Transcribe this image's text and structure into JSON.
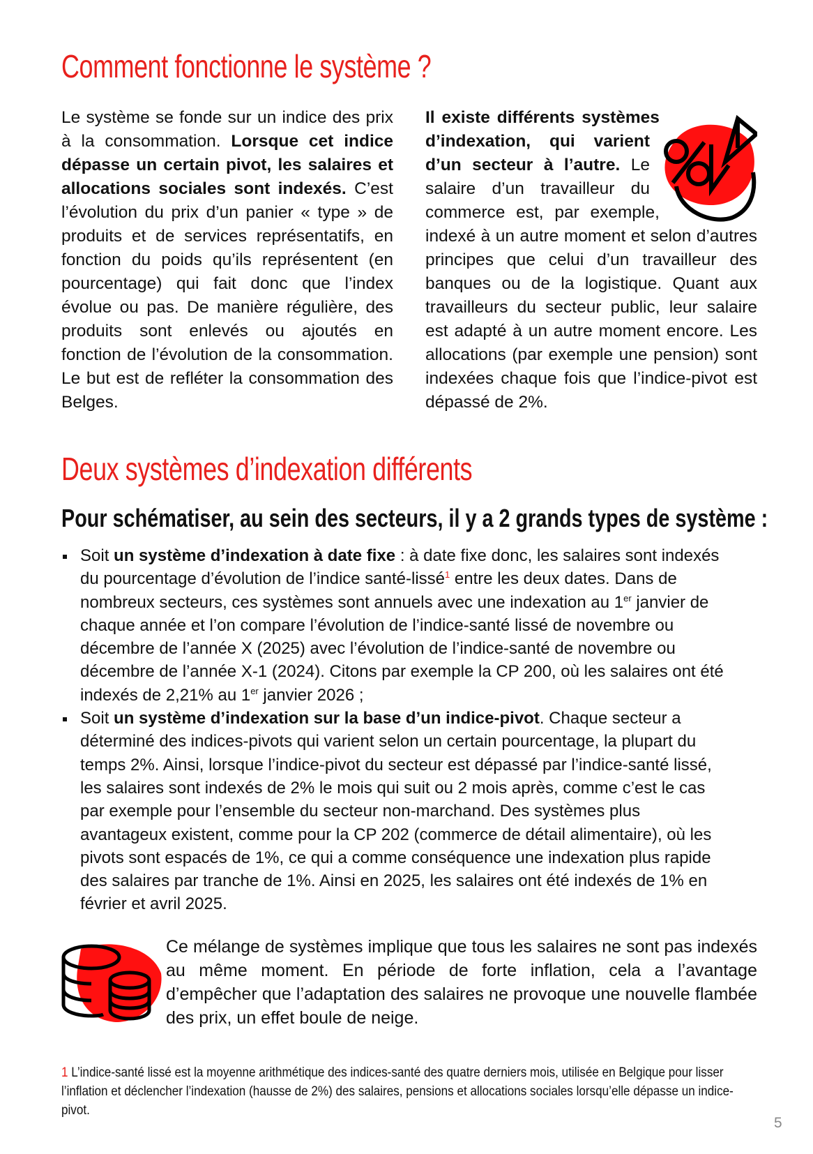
{
  "section1": {
    "title": "Comment fonctionne le système ?",
    "left": {
      "t1": "Le système se fonde sur un indice des prix à la consommation. ",
      "b1": "Lorsque cet indice dépasse un certain pivot, les salaires et allocations sociales sont indexés.",
      "t2": " C’est l’évolution du prix d’un panier « type » de produits et de services représentatifs, en fonction du poids qu’ils représentent (en pourcentage) qui fait donc que l’index évolue ou pas. De manière régulière, des produits sont enlevés ou ajoutés en fonction de l’évolution de la consommation. Le but est de refléter la consommation des Belges."
    },
    "right": {
      "b1": "Il existe différents systèmes d’indexation, qui varient d’un secteur à l’autre.",
      "t1": " Le salaire d’un travailleur du commerce est, par exemple, indexé à un autre moment et selon d’autres principes que celui d’un travailleur des banques ou de la logistique. Quant aux travailleurs du secteur public, leur salaire est adapté à un autre moment encore. Les allocations (par exemple une pension) sont indexées chaque fois que l’indice-pivot est dépassé de 2%."
    }
  },
  "section2": {
    "title": "Deux systèmes d’indexation différents",
    "subtitle": "Pour schématiser, au sein des secteurs, il y a 2 grands types de système :",
    "bullet1": {
      "t1": "Soit ",
      "b1": "un système d’indexation à date fixe",
      "t2": " : à date fixe donc, les salaires sont indexés du pourcentage d’évolution de l’indice santé-lissé",
      "fn": "1",
      "t3": " entre les deux dates. Dans de nombreux secteurs, ces systèmes sont annuels avec une indexation au 1",
      "sup1": "er",
      "t4": " janvier de chaque année et l’on compare l’évolution de l’indice-santé lissé de novembre ou décembre de l’année X (2025) avec l’évolution de l’indice-santé de novembre ou décembre de l’année X-1 (2024). Citons par exemple la CP 200, où les salaires ont été indexés de 2,21% au 1",
      "sup2": "er",
      "t5": " janvier 2026 ;"
    },
    "bullet2": {
      "t1": "Soit ",
      "b1": "un système d’indexation sur la base d’un indice-pivot",
      "t2": ". Chaque secteur a déterminé des indices-pivots qui varient selon un certain pourcentage, la plupart du temps 2%. Ainsi, lorsque l’indice-pivot du secteur est dépassé par l’indice-santé lissé, les salaires sont indexés de 2% le mois qui suit ou 2 mois après, comme c’est le cas par exemple pour  l’ensemble du secteur non-marchand. Des systèmes plus avantageux existent, comme pour la CP 202 (commerce de détail alimentaire), où les pivots sont espacés de 1%, ce qui a comme conséquence une indexation plus rapide des salaires par tranche de 1%. Ainsi en 2025, les salaires ont été indexés de 1% en février et avril 2025."
    },
    "outro": "Ce mélange de systèmes implique que tous les salaires ne sont pas indexés au même moment. En période de forte inflation, cela a l’avantage d’empêcher que l’adaptation des salaires ne provoque une nouvelle flambée des prix, un effet boule de neige."
  },
  "footnote": {
    "num": "1",
    "text": " L’indice-santé lissé est la moyenne arithmétique des indices-santé des quatre derniers mois, utilisée en Belgique pour lisser l’inflation et déclencher l’indexation (hausse de 2%) des salaires, pensions et allocations sociales lorsqu’elle dépasse un indice-pivot."
  },
  "page_number": "5",
  "colors": {
    "accent": "#e8201c",
    "text": "#111111",
    "page_number": "#888888"
  },
  "icons": [
    "percent-chart-icon",
    "coins-stack-icon"
  ]
}
